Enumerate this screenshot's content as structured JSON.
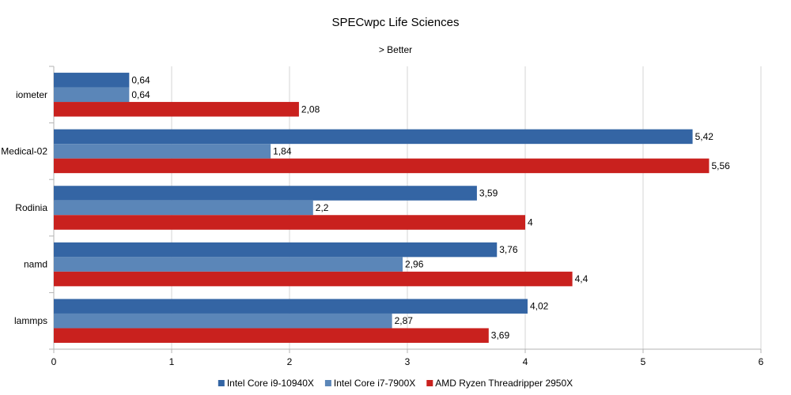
{
  "chart_data": {
    "type": "bar",
    "orientation": "horizontal",
    "title": "SPECwpc Life Sciences",
    "subtitle": "> Better",
    "categories": [
      "iometer",
      "Medical-02",
      "Rodinia",
      "namd",
      "lammps"
    ],
    "series": [
      {
        "name": "Intel Core i9-10940X",
        "color": "#3465a4",
        "values": [
          0.64,
          5.42,
          3.59,
          3.76,
          4.02
        ],
        "labels": [
          "0,64",
          "5,42",
          "3,59",
          "3,76",
          "4,02"
        ]
      },
      {
        "name": "Intel Core i7-7900X",
        "color": "#5b86b8",
        "values": [
          0.64,
          1.84,
          2.2,
          2.96,
          2.87
        ],
        "labels": [
          "0,64",
          "1,84",
          "2,2",
          "2,96",
          "2,87"
        ]
      },
      {
        "name": "AMD Ryzen Threadripper 2950X",
        "color": "#c9211e",
        "values": [
          2.08,
          5.56,
          4,
          4.4,
          3.69
        ],
        "labels": [
          "2,08",
          "5,56",
          "4",
          "4,4",
          "3,69"
        ]
      }
    ],
    "xlim": [
      0,
      6
    ],
    "xticks": [
      0,
      1,
      2,
      3,
      4,
      5,
      6
    ],
    "xlabel": "",
    "ylabel": "",
    "grid": true,
    "legend": "bottom"
  }
}
